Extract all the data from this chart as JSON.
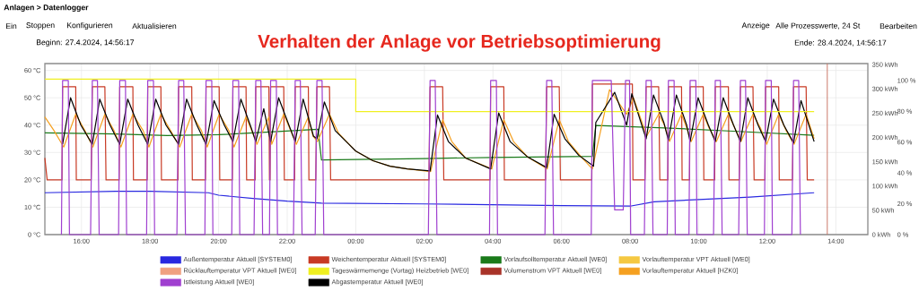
{
  "chart_data": {
    "type": "line",
    "title": "Verhalten der Anlage vor Betriebsoptimierung",
    "annotations": [
      "Anlagen > Datenlogger",
      "Ein",
      "Stoppen",
      "Konfigurieren",
      "Aktualisieren",
      "Anzeige",
      "Alle Prozesswerte, 24 St",
      "Bearbeiten",
      "Beginn: 27.4.2024, 14:56:17",
      "Ende: 28.4.2024, 14:56:17"
    ],
    "xlim": [
      "2024-04-27T14:56",
      "2024-04-28T14:56"
    ],
    "xticks": [
      {
        "value": "2024-04-27T16:00",
        "label": "16:00"
      },
      {
        "value": "2024-04-27T18:00",
        "label": "18:00"
      },
      {
        "value": "2024-04-27T20:00",
        "label": "20:00"
      },
      {
        "value": "2024-04-27T22:00",
        "label": "22:00"
      },
      {
        "value": "2024-04-28T00:00",
        "label": "00:00"
      },
      {
        "value": "2024-04-28T02:00",
        "label": "02:00"
      },
      {
        "value": "2024-04-28T04:00",
        "label": "04:00"
      },
      {
        "value": "2024-04-28T06:00",
        "label": "06:00"
      },
      {
        "value": "2024-04-28T08:00",
        "label": "08:00"
      },
      {
        "value": "2024-04-28T10:00",
        "label": "10:00"
      },
      {
        "value": "2024-04-28T12:00",
        "label": "12:00"
      },
      {
        "value": "2024-04-28T14:00",
        "label": "14:00"
      }
    ],
    "ylim": [
      0,
      62.5
    ],
    "yticks": [
      {
        "value": 0,
        "label": "0 °C"
      },
      {
        "value": 10,
        "label": "10 °C"
      },
      {
        "value": 20,
        "label": "20 °C"
      },
      {
        "value": 30,
        "label": "30 °C"
      },
      {
        "value": 40,
        "label": "40 °C"
      },
      {
        "value": 50,
        "label": "50 °C"
      },
      {
        "value": 60,
        "label": "60 °C"
      }
    ],
    "y2lim": [
      0,
      352
    ],
    "y2ticks": [
      {
        "value": 0,
        "label": "0 kWh"
      },
      {
        "value": 50,
        "label": "50 kWh"
      },
      {
        "value": 100,
        "label": "100 kWh"
      },
      {
        "value": 150,
        "label": "150 kWh"
      },
      {
        "value": 200,
        "label": "200 kWh"
      },
      {
        "value": 250,
        "label": "250 kWh"
      },
      {
        "value": 300,
        "label": "300 kWh"
      },
      {
        "value": 350,
        "label": "350 kWh"
      }
    ],
    "y3lim": [
      0,
      111
    ],
    "y3ticks": [
      {
        "value": 0,
        "label": "0 %"
      },
      {
        "value": 20,
        "label": "20 %"
      },
      {
        "value": 40,
        "label": "40 %"
      },
      {
        "value": 60,
        "label": "60 %"
      },
      {
        "value": 80,
        "label": "80 %"
      },
      {
        "value": 100,
        "label": "100 %"
      }
    ],
    "grid": true,
    "legend": "bottom",
    "marker": "none",
    "ref_lines": [
      {
        "axis": "x",
        "value": "2024-04-28T13:45",
        "color": "#c87060"
      }
    ],
    "series": [
      {
        "name": "Außentemperatur Aktuell [SYSTEM0]",
        "color": "#2828e0",
        "x": [
          "2024-04-27T14:56",
          "2024-04-27T17:00",
          "2024-04-27T18:00",
          "2024-04-27T19:42",
          "2024-04-27T20:00",
          "2024-04-27T21:00",
          "2024-04-27T22:00",
          "2024-04-27T23:00",
          "2024-04-28T02:00",
          "2024-04-28T06:00",
          "2024-04-28T08:00",
          "2024-04-28T08:42",
          "2024-04-28T10:00",
          "2024-04-28T11:30",
          "2024-04-28T13:22"
        ],
        "values": [
          15.3,
          15.8,
          15.8,
          15.3,
          14.4,
          13.2,
          12.2,
          11.5,
          11.2,
          10.6,
          10.4,
          12.0,
          12.8,
          13.7,
          15.3
        ]
      },
      {
        "name": "Weichentemperatur Aktuell [SYSTEM0]",
        "color": "#c83a24",
        "x": [
          "2024-04-27T14:56",
          "2024-04-27T15:00",
          "2024-04-27T15:26",
          "2024-04-27T15:27",
          "2024-04-27T15:50",
          "2024-04-27T15:51",
          "2024-04-27T16:17",
          "2024-04-27T16:19",
          "2024-04-27T16:41",
          "2024-04-27T16:43",
          "2024-04-27T17:06",
          "2024-04-27T17:07",
          "2024-04-27T17:30",
          "2024-04-27T17:31",
          "2024-04-27T17:55",
          "2024-04-27T17:56",
          "2024-04-27T18:19",
          "2024-04-27T18:20",
          "2024-04-27T18:49",
          "2024-04-27T18:50",
          "2024-04-27T19:13",
          "2024-04-27T19:14",
          "2024-04-27T19:37",
          "2024-04-27T19:38",
          "2024-04-27T20:01",
          "2024-04-27T20:02",
          "2024-04-27T20:24",
          "2024-04-27T20:25",
          "2024-04-27T20:48",
          "2024-04-27T20:49",
          "2024-04-27T21:04",
          "2024-04-27T21:05",
          "2024-04-27T21:28",
          "2024-04-27T21:29",
          "2024-04-27T21:30",
          "2024-04-27T21:31",
          "2024-04-27T21:54",
          "2024-04-27T21:55",
          "2024-04-27T22:13",
          "2024-04-27T22:14",
          "2024-04-27T22:37",
          "2024-04-27T22:38",
          "2024-04-27T22:50",
          "2024-04-27T22:52",
          "2024-04-27T23:14",
          "2024-04-27T23:16",
          "2024-04-28T02:08",
          "2024-04-28T02:10",
          "2024-04-28T02:32",
          "2024-04-28T02:34",
          "2024-04-28T03:55",
          "2024-04-28T03:56",
          "2024-04-28T04:19",
          "2024-04-28T04:20",
          "2024-04-28T05:32",
          "2024-04-28T05:34",
          "2024-04-28T05:56",
          "2024-04-28T05:58",
          "2024-04-28T06:53",
          "2024-04-28T06:54",
          "2024-04-28T08:04",
          "2024-04-28T08:05",
          "2024-04-28T08:26",
          "2024-04-28T08:28",
          "2024-04-28T08:50",
          "2024-04-28T08:52",
          "2024-04-28T09:06",
          "2024-04-28T09:07",
          "2024-04-28T09:30",
          "2024-04-28T09:31",
          "2024-04-28T09:44",
          "2024-04-28T09:45",
          "2024-04-28T10:08",
          "2024-04-28T10:09",
          "2024-04-28T10:28",
          "2024-04-28T10:29",
          "2024-04-28T10:52",
          "2024-04-28T10:53",
          "2024-04-28T11:11",
          "2024-04-28T11:13",
          "2024-04-28T11:35",
          "2024-04-28T11:37",
          "2024-04-28T11:56",
          "2024-04-28T11:57",
          "2024-04-28T12:20",
          "2024-04-28T12:21",
          "2024-04-28T12:44",
          "2024-04-28T12:46",
          "2024-04-28T13:08",
          "2024-04-28T13:10",
          "2024-04-28T13:22"
        ],
        "values": [
          28,
          20,
          20,
          54,
          54,
          20,
          20,
          54,
          54,
          20,
          20,
          54,
          54,
          20,
          20,
          54,
          54,
          20,
          20,
          54,
          54,
          20,
          20,
          54,
          54,
          20,
          20,
          54,
          54,
          20,
          20,
          54,
          54,
          20,
          20,
          54,
          54,
          20,
          20,
          54,
          54,
          20,
          20,
          54,
          54,
          20,
          20,
          54,
          54,
          20,
          20,
          54,
          54,
          20,
          20,
          54,
          54,
          20,
          20,
          55,
          55,
          20,
          20,
          54,
          54,
          20,
          20,
          54,
          54,
          20,
          20,
          54,
          54,
          20,
          20,
          54,
          54,
          20,
          20,
          54,
          54,
          20,
          20,
          54,
          54,
          20,
          20,
          54,
          54,
          20,
          20
        ]
      },
      {
        "name": "Vorlaufsolltemperatur Aktuell [WE0]",
        "color": "#1a7a1a",
        "x": [
          "2024-04-27T14:56",
          "2024-04-27T17:00",
          "2024-04-27T18:30",
          "2024-04-27T20:00",
          "2024-04-27T21:30",
          "2024-04-27T22:54",
          "2024-04-27T23:00",
          "2024-04-28T02:00",
          "2024-04-28T04:00",
          "2024-04-28T06:54",
          "2024-04-28T07:00",
          "2024-04-28T09:00",
          "2024-04-28T11:00",
          "2024-04-28T13:22"
        ],
        "values": [
          37.2,
          36.8,
          36.2,
          36.5,
          37.5,
          38.5,
          27.3,
          27.8,
          28.2,
          28.6,
          39.9,
          39.0,
          37.8,
          36.3
        ]
      },
      {
        "name": "Vorlauftemperatur VPT Aktuell [WE0]",
        "color": "#f5c842"
      },
      {
        "name": "Rücklauftemperatur VPT Aktuell [WE0]",
        "color": "#f0a080"
      },
      {
        "name": "Tageswärmemenge (Vortag) Heizbetrieb [WE0]",
        "color": "#f0f020",
        "axis": "y2",
        "x": [
          "2024-04-27T14:56",
          "2024-04-28T00:00",
          "2024-04-28T00:00",
          "2024-04-28T13:22"
        ],
        "values": [
          320,
          320,
          253,
          253
        ]
      },
      {
        "name": "Volumenstrom VPT Aktuell [WE0]",
        "color": "#a83228"
      },
      {
        "name": "Vorlauftemperatur Aktuell [HZK0]",
        "color": "#f5a020",
        "x": [
          "2024-04-27T14:56",
          "2024-04-27T15:12",
          "2024-04-27T15:29",
          "2024-04-27T15:50",
          "2024-04-27T16:06",
          "2024-04-27T16:20",
          "2024-04-27T16:41",
          "2024-04-27T16:57",
          "2024-04-27T17:09",
          "2024-04-27T17:30",
          "2024-04-27T17:48",
          "2024-04-27T17:58",
          "2024-04-27T18:19",
          "2024-04-27T18:36",
          "2024-04-27T18:52",
          "2024-04-27T19:13",
          "2024-04-27T19:30",
          "2024-04-27T19:40",
          "2024-04-27T20:01",
          "2024-04-27T20:18",
          "2024-04-27T20:27",
          "2024-04-27T20:48",
          "2024-04-27T21:00",
          "2024-04-27T21:07",
          "2024-04-27T21:28",
          "2024-04-27T21:33",
          "2024-04-27T21:54",
          "2024-04-27T22:06",
          "2024-04-27T22:16",
          "2024-04-27T22:37",
          "2024-04-27T22:45",
          "2024-04-27T22:53",
          "2024-04-27T23:14",
          "2024-04-27T23:30",
          "2024-04-28T00:00",
          "2024-04-28T00:30",
          "2024-04-28T01:00",
          "2024-04-28T01:30",
          "2024-04-28T02:11",
          "2024-04-28T02:32",
          "2024-04-28T02:48",
          "2024-04-28T03:12",
          "2024-04-28T03:58",
          "2024-04-28T04:19",
          "2024-04-28T04:36",
          "2024-04-28T05:00",
          "2024-04-28T05:35",
          "2024-04-28T05:56",
          "2024-04-28T06:12",
          "2024-04-28T06:36",
          "2024-04-28T06:54",
          "2024-04-28T07:24",
          "2024-04-28T07:54",
          "2024-04-28T08:06",
          "2024-04-28T08:29",
          "2024-04-28T08:50",
          "2024-04-28T09:00",
          "2024-04-28T09:09",
          "2024-04-28T09:30",
          "2024-04-28T09:39",
          "2024-04-28T09:47",
          "2024-04-28T10:08",
          "2024-04-28T10:18",
          "2024-04-28T10:31",
          "2024-04-28T10:52",
          "2024-04-28T11:03",
          "2024-04-28T11:14",
          "2024-04-28T11:35",
          "2024-04-28T11:48",
          "2024-04-28T11:59",
          "2024-04-28T12:20",
          "2024-04-28T12:33",
          "2024-04-28T12:47",
          "2024-04-28T13:08",
          "2024-04-28T13:22"
        ],
        "values": [
          43,
          38,
          32,
          44,
          38,
          32,
          44,
          38,
          32,
          44,
          38,
          32,
          44,
          38,
          32,
          44,
          38,
          32,
          44,
          38,
          32,
          43,
          37,
          33,
          43,
          33,
          44,
          38,
          33,
          43,
          36,
          34,
          44,
          37,
          30.5,
          27,
          25,
          24,
          23,
          42,
          34,
          28,
          24,
          42,
          34,
          28.5,
          24,
          42,
          34,
          28,
          24,
          53,
          44,
          50,
          36,
          44,
          40,
          34,
          44,
          39,
          34,
          44,
          39,
          34,
          44,
          39,
          34,
          44,
          39,
          33,
          44,
          38,
          33,
          44,
          35
        ]
      },
      {
        "name": "Istleistung Aktuell [WE0]",
        "color": "#a040d0",
        "axis": "y3",
        "x": [
          "2024-04-27T15:25",
          "2024-04-27T15:27",
          "2024-04-27T15:37",
          "2024-04-27T15:39",
          "2024-04-27T16:16",
          "2024-04-27T16:19",
          "2024-04-27T16:28",
          "2024-04-27T16:31",
          "2024-04-27T17:05",
          "2024-04-27T17:07",
          "2024-04-27T17:17",
          "2024-04-27T17:19",
          "2024-04-27T17:54",
          "2024-04-27T17:56",
          "2024-04-27T18:06",
          "2024-04-27T18:08",
          "2024-04-27T18:47",
          "2024-04-27T18:50",
          "2024-04-27T18:59",
          "2024-04-27T19:02",
          "2024-04-27T19:36",
          "2024-04-27T19:38",
          "2024-04-27T19:48",
          "2024-04-27T19:50",
          "2024-04-27T20:23",
          "2024-04-27T20:25",
          "2024-04-27T20:35",
          "2024-04-27T20:37",
          "2024-04-27T21:02",
          "2024-04-27T21:05",
          "2024-04-27T21:14",
          "2024-04-27T21:17",
          "2024-04-27T21:29",
          "2024-04-27T21:31",
          "2024-04-27T21:41",
          "2024-04-27T21:43",
          "2024-04-27T22:11",
          "2024-04-27T22:14",
          "2024-04-27T22:23",
          "2024-04-27T22:26",
          "2024-04-27T22:49",
          "2024-04-27T22:52",
          "2024-04-27T23:01",
          "2024-04-27T23:04",
          "2024-04-28T02:07",
          "2024-04-28T02:10",
          "2024-04-28T02:19",
          "2024-04-28T02:22",
          "2024-04-28T03:54",
          "2024-04-28T03:56",
          "2024-04-28T04:06",
          "2024-04-28T04:08",
          "2024-04-28T05:31",
          "2024-04-28T05:34",
          "2024-04-28T05:43",
          "2024-04-28T05:46",
          "2024-04-28T06:52",
          "2024-04-28T06:54",
          "2024-04-28T07:27",
          "2024-04-28T07:33",
          "2024-04-28T07:48",
          "2024-04-28T07:52",
          "2024-04-28T07:59",
          "2024-04-28T08:01",
          "2024-04-28T08:25",
          "2024-04-28T08:28",
          "2024-04-28T08:37",
          "2024-04-28T08:40",
          "2024-04-28T09:05",
          "2024-04-28T09:07",
          "2024-04-28T09:17",
          "2024-04-28T09:19",
          "2024-04-28T09:43",
          "2024-04-28T09:45",
          "2024-04-28T09:55",
          "2024-04-28T09:57",
          "2024-04-28T10:26",
          "2024-04-28T10:29",
          "2024-04-28T10:38",
          "2024-04-28T10:41",
          "2024-04-28T11:10",
          "2024-04-28T11:13",
          "2024-04-28T11:22",
          "2024-04-28T11:25",
          "2024-04-28T11:55",
          "2024-04-28T11:57",
          "2024-04-28T12:07",
          "2024-04-28T12:09",
          "2024-04-28T12:43",
          "2024-04-28T12:46",
          "2024-04-28T12:55",
          "2024-04-28T12:58"
        ],
        "values": [
          0,
          100,
          100,
          0,
          0,
          100,
          100,
          0,
          0,
          100,
          100,
          0,
          0,
          100,
          100,
          0,
          0,
          100,
          100,
          0,
          0,
          100,
          100,
          0,
          0,
          100,
          100,
          0,
          0,
          100,
          100,
          0,
          0,
          100,
          100,
          0,
          0,
          100,
          100,
          0,
          0,
          100,
          100,
          0,
          0,
          100,
          100,
          0,
          0,
          100,
          100,
          0,
          0,
          100,
          100,
          0,
          0,
          100,
          100,
          16,
          16,
          100,
          100,
          0,
          0,
          100,
          100,
          0,
          0,
          100,
          100,
          0,
          0,
          100,
          100,
          0,
          0,
          100,
          100,
          0,
          0,
          100,
          100,
          0,
          0,
          100,
          100,
          0,
          0,
          100,
          100,
          0
        ]
      },
      {
        "name": "Abgastemperatur Aktuell [WE0]",
        "color": "#000000",
        "x": [
          "2024-04-27T15:27",
          "2024-04-27T15:41",
          "2024-04-27T15:59",
          "2024-04-27T16:19",
          "2024-04-27T16:32",
          "2024-04-27T16:50",
          "2024-04-27T17:07",
          "2024-04-27T17:21",
          "2024-04-27T17:39",
          "2024-04-27T17:56",
          "2024-04-27T18:10",
          "2024-04-27T18:28",
          "2024-04-27T18:50",
          "2024-04-27T19:04",
          "2024-04-27T19:22",
          "2024-04-27T19:38",
          "2024-04-27T19:52",
          "2024-04-27T20:10",
          "2024-04-27T20:25",
          "2024-04-27T20:39",
          "2024-04-27T20:57",
          "2024-04-27T21:05",
          "2024-04-27T21:19",
          "2024-04-27T21:31",
          "2024-04-27T21:45",
          "2024-04-27T22:03",
          "2024-04-27T22:14",
          "2024-04-27T22:28",
          "2024-04-27T22:46",
          "2024-04-27T22:52",
          "2024-04-27T23:05",
          "2024-04-27T23:24",
          "2024-04-27T23:48",
          "2024-04-28T00:00",
          "2024-04-28T00:30",
          "2024-04-28T01:00",
          "2024-04-28T01:30",
          "2024-04-28T02:10",
          "2024-04-28T02:23",
          "2024-04-28T02:42",
          "2024-04-28T03:12",
          "2024-04-28T03:56",
          "2024-04-28T04:10",
          "2024-04-28T04:30",
          "2024-04-28T05:00",
          "2024-04-28T05:34",
          "2024-04-28T05:47",
          "2024-04-28T06:06",
          "2024-04-28T06:30",
          "2024-04-28T06:56",
          "2024-04-28T07:00",
          "2024-04-28T07:33",
          "2024-04-28T07:54",
          "2024-04-28T08:03",
          "2024-04-28T08:28",
          "2024-04-28T08:41",
          "2024-04-28T08:59",
          "2024-04-28T09:07",
          "2024-04-28T09:21",
          "2024-04-28T09:39",
          "2024-04-28T09:45",
          "2024-04-28T09:59",
          "2024-04-28T10:17",
          "2024-04-28T10:29",
          "2024-04-28T10:43",
          "2024-04-28T11:01",
          "2024-04-28T11:13",
          "2024-04-28T11:26",
          "2024-04-28T11:44",
          "2024-04-28T11:57",
          "2024-04-28T12:11",
          "2024-04-28T12:29",
          "2024-04-28T12:46",
          "2024-04-28T12:59",
          "2024-04-28T13:22"
        ],
        "values": [
          33,
          50,
          40,
          33,
          49.5,
          40,
          33,
          49.5,
          40,
          33,
          49.5,
          40,
          33,
          49.5,
          40,
          33,
          49,
          40,
          34,
          49.5,
          39,
          34,
          46,
          34,
          50,
          40,
          34,
          49.5,
          36,
          35,
          48.5,
          38,
          33,
          30.5,
          27,
          25,
          24,
          23.3,
          43.7,
          34,
          28,
          24,
          44.5,
          34,
          28.5,
          24.5,
          44,
          35,
          29,
          25,
          41,
          52,
          40,
          51.5,
          35,
          51,
          41,
          34.5,
          51,
          40,
          34,
          50,
          40,
          34,
          50,
          40,
          34,
          50,
          40,
          34,
          49.5,
          40,
          33.5,
          49,
          34
        ]
      }
    ]
  }
}
